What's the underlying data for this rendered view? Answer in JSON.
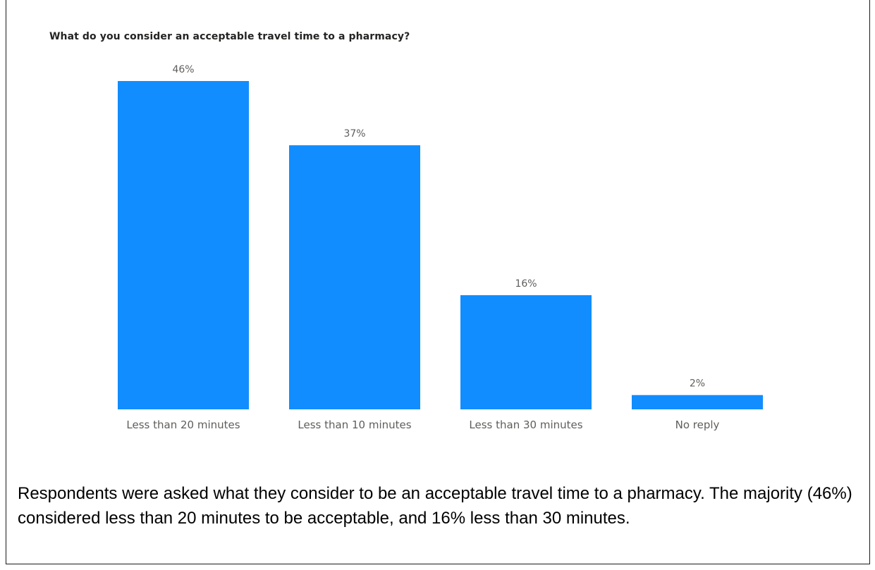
{
  "chart_data": {
    "type": "bar",
    "title": "What do you consider an acceptable travel time to a pharmacy?",
    "categories": [
      "Less than 20 minutes",
      "Less than 10 minutes",
      "Less than 30 minutes",
      "No reply"
    ],
    "values": [
      46,
      37,
      16,
      2
    ],
    "value_labels": [
      "46%",
      "37%",
      "16%",
      "2%"
    ],
    "unit": "%",
    "ylim": [
      0,
      46
    ],
    "bar_color": "#118dff",
    "grid": false,
    "legend": "none"
  },
  "caption": "Respondents were asked what they consider to be an acceptable travel time to a pharmacy. The majority (46%) considered less than 20 minutes to be acceptable, and 16% less than 30 minutes."
}
